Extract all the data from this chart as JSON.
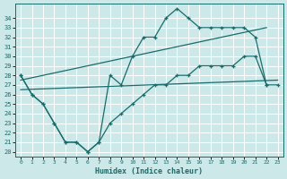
{
  "xlabel": "Humidex (Indice chaleur)",
  "bg_color": "#cce8e8",
  "line_color": "#1a6b6b",
  "grid_color": "#ffffff",
  "upper_x": [
    0,
    1,
    2,
    3,
    4,
    5,
    6,
    7,
    8,
    9,
    10,
    11,
    12,
    13,
    14,
    15,
    16,
    17,
    18,
    19,
    20,
    21,
    22
  ],
  "upper_y": [
    28,
    26,
    25,
    23,
    21,
    21,
    20,
    21,
    28,
    27,
    30,
    32,
    32,
    34,
    35,
    34,
    33,
    33,
    33,
    33,
    33,
    32,
    27
  ],
  "lower_x": [
    0,
    1,
    2,
    3,
    4,
    5,
    6,
    7,
    8,
    9,
    10,
    11,
    12,
    13,
    14,
    15,
    16,
    17,
    18,
    19,
    20,
    21,
    22,
    23
  ],
  "lower_y": [
    28,
    26,
    25,
    23,
    21,
    21,
    20,
    21,
    23,
    24,
    25,
    26,
    27,
    27,
    28,
    28,
    29,
    29,
    29,
    29,
    30,
    30,
    27,
    27
  ],
  "trend1_x": [
    0,
    22
  ],
  "trend1_y": [
    27.5,
    33.0
  ],
  "trend2_x": [
    0,
    23
  ],
  "trend2_y": [
    26.5,
    27.5
  ],
  "ylim": [
    19.5,
    35.5
  ],
  "xlim": [
    -0.5,
    23.5
  ],
  "yticks": [
    20,
    21,
    22,
    23,
    24,
    25,
    26,
    27,
    28,
    29,
    30,
    31,
    32,
    33,
    34
  ],
  "xticks": [
    0,
    1,
    2,
    3,
    4,
    5,
    6,
    7,
    8,
    9,
    10,
    11,
    12,
    13,
    14,
    15,
    16,
    17,
    18,
    19,
    20,
    21,
    22,
    23
  ]
}
